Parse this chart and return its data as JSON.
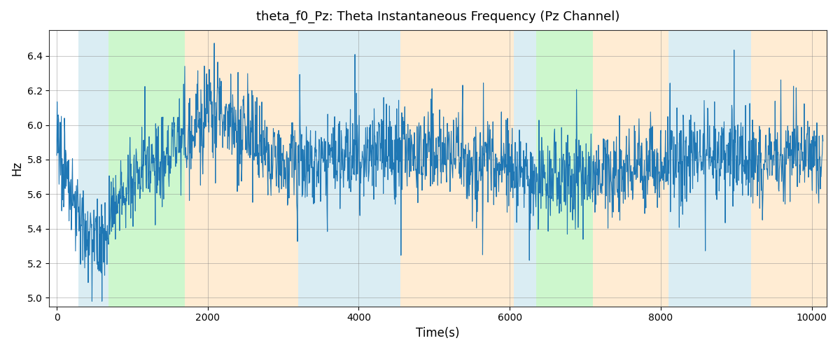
{
  "title": "theta_f0_Pz: Theta Instantaneous Frequency (Pz Channel)",
  "xlabel": "Time(s)",
  "ylabel": "Hz",
  "xlim": [
    -100,
    10200
  ],
  "ylim": [
    4.95,
    6.55
  ],
  "yticks": [
    5.0,
    5.2,
    5.4,
    5.6,
    5.8,
    6.0,
    6.2,
    6.4
  ],
  "xticks": [
    0,
    2000,
    4000,
    6000,
    8000,
    10000
  ],
  "line_color": "#1f77b4",
  "line_width": 0.8,
  "seed": 12345,
  "n_points": 2000,
  "t_max": 10150,
  "base_mean": 5.82,
  "background_color": "#ffffff",
  "bands": [
    {
      "start": 290,
      "end": 690,
      "color": "#add8e6",
      "alpha": 0.45
    },
    {
      "start": 690,
      "end": 1700,
      "color": "#90ee90",
      "alpha": 0.45
    },
    {
      "start": 1700,
      "end": 3200,
      "color": "#ffd59e",
      "alpha": 0.45
    },
    {
      "start": 3200,
      "end": 4550,
      "color": "#add8e6",
      "alpha": 0.45
    },
    {
      "start": 4550,
      "end": 6050,
      "color": "#ffd59e",
      "alpha": 0.45
    },
    {
      "start": 6050,
      "end": 6350,
      "color": "#add8e6",
      "alpha": 0.45
    },
    {
      "start": 6350,
      "end": 7100,
      "color": "#90ee90",
      "alpha": 0.45
    },
    {
      "start": 7100,
      "end": 8100,
      "color": "#ffd59e",
      "alpha": 0.45
    },
    {
      "start": 8100,
      "end": 9200,
      "color": "#add8e6",
      "alpha": 0.45
    },
    {
      "start": 9200,
      "end": 10200,
      "color": "#ffd59e",
      "alpha": 0.45
    }
  ]
}
